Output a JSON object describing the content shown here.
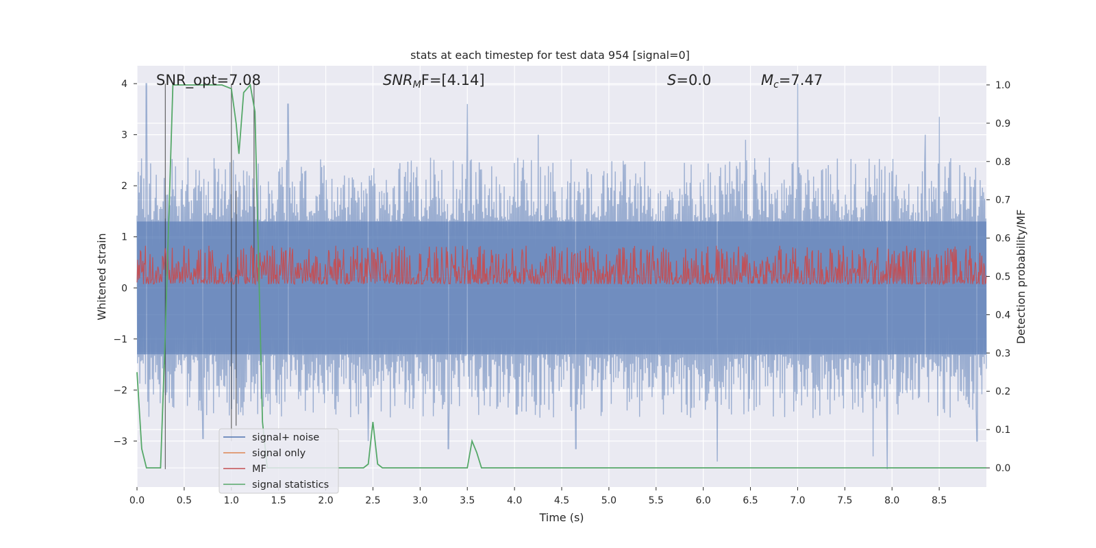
{
  "chart_data": {
    "type": "line",
    "title": "stats at each timestep for test data 954 [signal=0]",
    "xlabel": "Time (s)",
    "ylabel": "Whitened strain",
    "y2label": "Detection probability/MF",
    "xlim": [
      0.0,
      9.0
    ],
    "ylim": [
      -3.9,
      4.35
    ],
    "y2lim": [
      -0.05,
      1.05
    ],
    "xticks": [
      0.0,
      0.5,
      1.0,
      1.5,
      2.0,
      2.5,
      3.0,
      3.5,
      4.0,
      4.5,
      5.0,
      5.5,
      6.0,
      6.5,
      7.0,
      7.5,
      8.0,
      8.5
    ],
    "xtick_labels": [
      "0.0",
      "0.5",
      "1.0",
      "1.5",
      "2.0",
      "2.5",
      "3.0",
      "3.5",
      "4.0",
      "4.5",
      "5.0",
      "5.5",
      "6.0",
      "6.5",
      "7.0",
      "7.5",
      "8.0",
      "8.5"
    ],
    "yticks": [
      -3,
      -2,
      -1,
      0,
      1,
      2,
      3,
      4
    ],
    "ytick_labels": [
      "−3",
      "−2",
      "−1",
      "0",
      "1",
      "2",
      "3",
      "4"
    ],
    "y2ticks": [
      0.0,
      0.1,
      0.2,
      0.3,
      0.4,
      0.5,
      0.6,
      0.7,
      0.8,
      0.9,
      1.0
    ],
    "y2tick_labels": [
      "0.0",
      "0.1",
      "0.2",
      "0.3",
      "0.4",
      "0.5",
      "0.6",
      "0.7",
      "0.8",
      "0.9",
      "1.0"
    ],
    "grid": true,
    "legend_position": "bottom-left",
    "annotations": {
      "snr_opt": "SNR_opt=7.08",
      "snr_mf_symbol": "SNR",
      "snr_mf_sub": "M",
      "snr_mf_rest": "F=[4.14]",
      "s_symbol": "S",
      "s_rest": "=0.0",
      "mc_symbol": "M",
      "mc_sub": "c",
      "mc_rest": "=7.47"
    },
    "series": [
      {
        "name": "signal+ noise",
        "color": "#4c72b0",
        "axis": "left",
        "envelope": {
          "band_low": -1.3,
          "band_high": 1.3,
          "typical_peak": 2.2,
          "typical_trough": -2.2
        },
        "notable_peaks": [
          {
            "x": 0.1,
            "y": 4.0
          },
          {
            "x": 1.6,
            "y": 3.6
          },
          {
            "x": 3.5,
            "y": 3.6
          },
          {
            "x": 7.0,
            "y": 4.0
          },
          {
            "x": 8.5,
            "y": 3.35
          },
          {
            "x": 8.35,
            "y": 3.0
          },
          {
            "x": 4.25,
            "y": 3.0
          },
          {
            "x": 6.45,
            "y": 2.9
          }
        ],
        "notable_troughs": [
          {
            "x": 7.95,
            "y": -3.55
          },
          {
            "x": 6.15,
            "y": -3.4
          },
          {
            "x": 7.8,
            "y": -3.3
          },
          {
            "x": 3.3,
            "y": -3.15
          },
          {
            "x": 4.65,
            "y": -3.15
          },
          {
            "x": 0.7,
            "y": -2.95
          },
          {
            "x": 2.45,
            "y": -3.0
          },
          {
            "x": 8.9,
            "y": -3.0
          }
        ]
      },
      {
        "name": "signal only",
        "color": "#dd8452",
        "axis": "left",
        "values": []
      },
      {
        "name": "MF",
        "color": "#c44e52",
        "axis": "right",
        "baseline": 0.5,
        "min": 0.48,
        "max": 0.58
      },
      {
        "name": "signal statistics",
        "color": "#55a868",
        "axis": "right",
        "x": [
          0.0,
          0.05,
          0.1,
          0.25,
          0.3,
          0.38,
          0.45,
          0.6,
          0.75,
          0.9,
          1.0,
          1.05,
          1.08,
          1.13,
          1.2,
          1.25,
          1.33,
          1.38,
          1.5,
          2.0,
          2.4,
          2.45,
          2.5,
          2.55,
          2.6,
          3.0,
          3.5,
          3.55,
          3.6,
          3.65,
          3.7,
          4.0,
          9.0
        ],
        "y": [
          0.25,
          0.05,
          0.0,
          0.0,
          0.35,
          1.0,
          1.0,
          1.0,
          1.0,
          1.0,
          0.99,
          0.9,
          0.82,
          0.98,
          1.0,
          0.93,
          0.12,
          0.0,
          0.0,
          0.0,
          0.0,
          0.01,
          0.12,
          0.01,
          0.0,
          0.0,
          0.0,
          0.07,
          0.04,
          0.0,
          0.0,
          0.0,
          0.0
        ]
      }
    ],
    "vertical_markers": [
      {
        "x": 0.3,
        "y_top": 4.0,
        "y_bottom": -3.55
      },
      {
        "x": 1.0,
        "y_top": 4.0,
        "y_bottom": -3.0
      },
      {
        "x": 1.05,
        "y_top": 1.9,
        "y_bottom": -2.7
      },
      {
        "x": 1.24,
        "y_top": 4.0,
        "y_bottom": 0.2
      }
    ]
  }
}
